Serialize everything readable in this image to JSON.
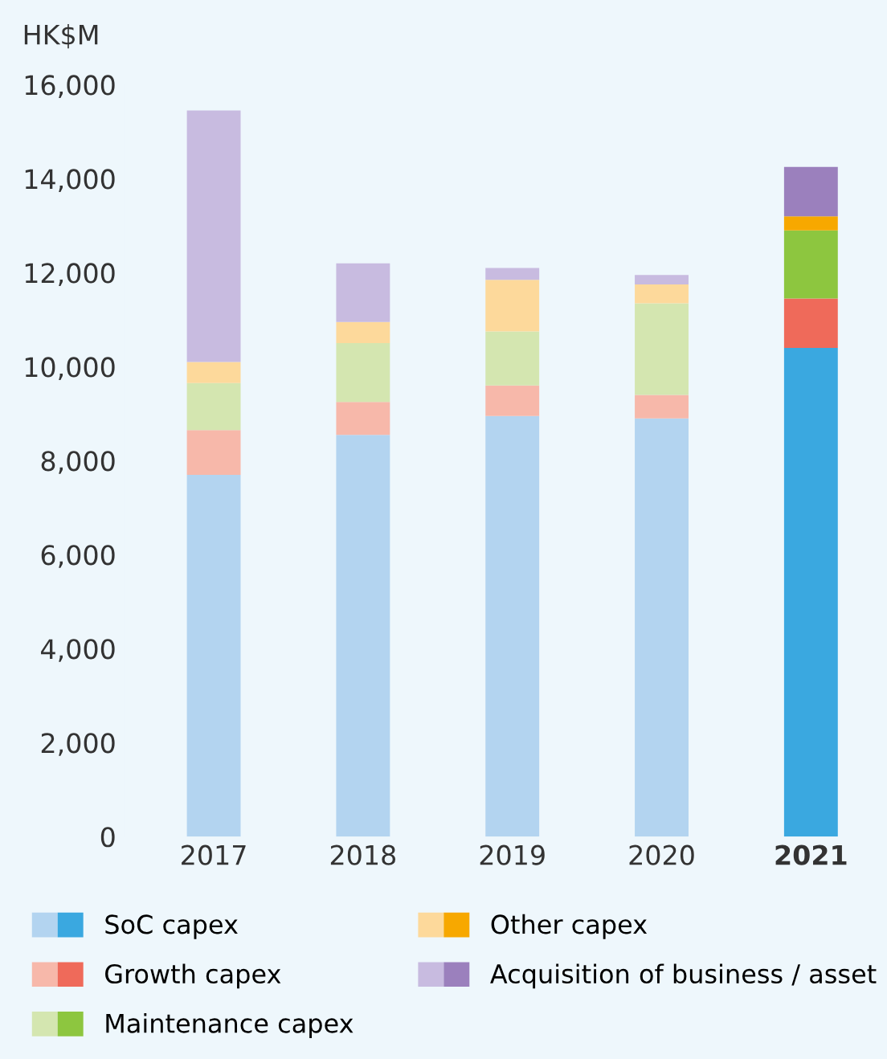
{
  "chart_data": {
    "type": "bar",
    "stacked": true,
    "ylabel": "HK$M",
    "categories": [
      "2017",
      "2018",
      "2019",
      "2020",
      "2021"
    ],
    "series": [
      {
        "name": "SoC capex",
        "colors": [
          "#b3d4f0",
          "#b3d4f0",
          "#b3d4f0",
          "#b3d4f0",
          "#3aa8e0"
        ],
        "values": [
          7700,
          8550,
          8950,
          8900,
          10400
        ]
      },
      {
        "name": "Growth capex",
        "colors": [
          "#f7b8aa",
          "#f7b8aa",
          "#f7b8aa",
          "#f7b8aa",
          "#ef6a5a"
        ],
        "values": [
          950,
          700,
          650,
          500,
          1050
        ]
      },
      {
        "name": "Maintenance capex",
        "colors": [
          "#d4e6b0",
          "#d4e6b0",
          "#d4e6b0",
          "#d4e6b0",
          "#8dc63f"
        ],
        "values": [
          1000,
          1250,
          1150,
          1950,
          1450
        ]
      },
      {
        "name": "Other capex",
        "colors": [
          "#fdd99b",
          "#fdd99b",
          "#fdd99b",
          "#fdd99b",
          "#f7a800"
        ],
        "values": [
          450,
          450,
          1100,
          400,
          300
        ]
      },
      {
        "name": "Acquisition of business / asset",
        "colors": [
          "#c8bbe0",
          "#c8bbe0",
          "#c8bbe0",
          "#c8bbe0",
          "#9b80bd"
        ],
        "values": [
          5350,
          1250,
          250,
          200,
          1050
        ]
      }
    ],
    "ylim": [
      0,
      16000
    ],
    "yticks": [
      {
        "value": 0,
        "label": "0"
      },
      {
        "value": 2000,
        "label": "2,000"
      },
      {
        "value": 4000,
        "label": "4,000"
      },
      {
        "value": 6000,
        "label": "6,000"
      },
      {
        "value": 8000,
        "label": "8,000"
      },
      {
        "value": 10000,
        "label": "10,000"
      },
      {
        "value": 12000,
        "label": "12,000"
      },
      {
        "value": 14000,
        "label": "14,000"
      },
      {
        "value": 16000,
        "label": "16,000"
      }
    ],
    "legend": "bottom",
    "grid": false
  }
}
